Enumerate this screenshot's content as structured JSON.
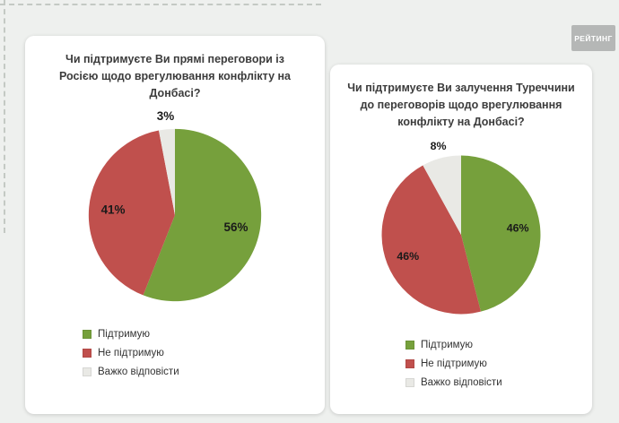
{
  "page": {
    "background_color": "#eef0ee",
    "logo_text": "РЕЙТИНГ"
  },
  "chart_data": [
    {
      "type": "pie",
      "title": "Чи підтримуєте Ви прямі переговори із Росією щодо врегулювання конфлікту на Донбасі?",
      "title_lines": [
        "Чи підтримуєте Ви прямі переговори із",
        "Росією щодо врегулювання конфлікту на",
        "Донбасі?"
      ],
      "labels": [
        "Підтримую",
        "Не підтримую",
        "Важко відповісти"
      ],
      "values": [
        56,
        41,
        3
      ],
      "value_labels": [
        "56%",
        "41%",
        "3%"
      ],
      "colors": [
        "#76A03C",
        "#C0504D",
        "#E9E9E5"
      ],
      "start_angle_deg": 0,
      "direction": "clockwise",
      "legend_position": "bottom-left"
    },
    {
      "type": "pie",
      "title": "Чи підтримуєте Ви залучення Туреччини до переговорів щодо врегулювання конфлікту на Донбасі?",
      "title_lines": [
        "Чи підтримуєте Ви залучення Туреччини",
        "до переговорів щодо врегулювання",
        "конфлікту на Донбасі?"
      ],
      "labels": [
        "Підтримую",
        "Не підтримую",
        "Важко відповісти"
      ],
      "values": [
        46,
        46,
        8
      ],
      "value_labels": [
        "46%",
        "46%",
        "8%"
      ],
      "colors": [
        "#76A03C",
        "#C0504D",
        "#E9E9E5"
      ],
      "start_angle_deg": 0,
      "direction": "clockwise",
      "legend_position": "bottom-left"
    }
  ]
}
